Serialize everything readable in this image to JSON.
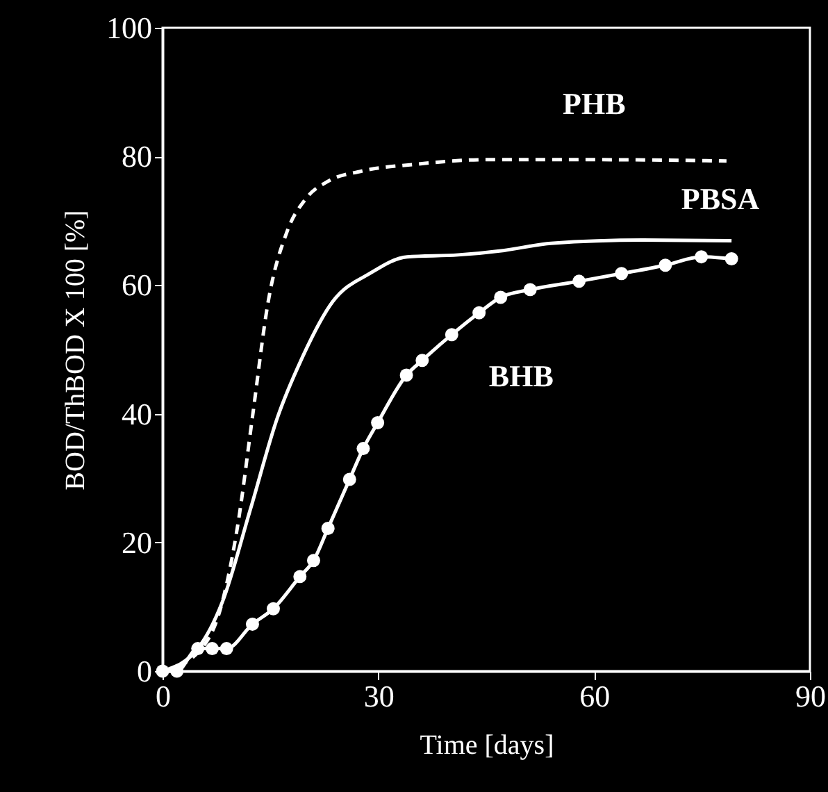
{
  "chart_data": {
    "type": "line",
    "xlabel": "Time [days]",
    "ylabel": "BOD/ThBOD X 100 [%]",
    "xlim": [
      0,
      90
    ],
    "ylim": [
      0,
      100
    ],
    "xticks": [
      0,
      30,
      60,
      90
    ],
    "yticks": [
      0,
      20,
      40,
      60,
      80,
      100
    ],
    "grid": false,
    "series": [
      {
        "name": "PHB",
        "color": "#ffffff",
        "line_style": "dashed",
        "marker": "none",
        "x": [
          0,
          5,
          8.3,
          10.5,
          12.5,
          14.7,
          17.3,
          19.9,
          23.1,
          27.6,
          35.3,
          45,
          60,
          78.4
        ],
        "values": [
          0,
          3,
          10.7,
          23.0,
          39.5,
          57.5,
          68.3,
          73.4,
          76.2,
          77.7,
          78.8,
          79.5,
          79.5,
          79.3
        ]
      },
      {
        "name": "PBSA",
        "color": "#ffffff",
        "line_style": "solid",
        "marker": "none",
        "x": [
          0,
          4.9,
          8.3,
          12.2,
          16.0,
          19.2,
          23.7,
          28.8,
          34.0,
          41.1,
          47.5,
          54,
          66.8,
          79.1
        ],
        "values": [
          0,
          3.5,
          10.7,
          25.1,
          39.5,
          48.2,
          57.5,
          61.8,
          64.4,
          64.7,
          65.4,
          66.5,
          67.0,
          66.9
        ]
      },
      {
        "name": "BHB",
        "color": "#ffffff",
        "line_style": "solid",
        "marker": "circle",
        "x": [
          0,
          2,
          4.9,
          6.9,
          8.9,
          12.5,
          15.4,
          19.1,
          21.0,
          23.0,
          26.0,
          27.9,
          29.9,
          33.9,
          36.1,
          40.2,
          44.0,
          47.0,
          51.1,
          57.9,
          63.8,
          69.9,
          74.9,
          79.1
        ],
        "values": [
          0,
          0,
          3.5,
          3.5,
          3.5,
          7.3,
          9.7,
          14.7,
          17.2,
          22.2,
          29.8,
          34.6,
          38.6,
          46.0,
          48.3,
          52.3,
          55.7,
          58.1,
          59.3,
          60.6,
          61.8,
          63.1,
          64.4,
          64.1
        ]
      }
    ]
  }
}
